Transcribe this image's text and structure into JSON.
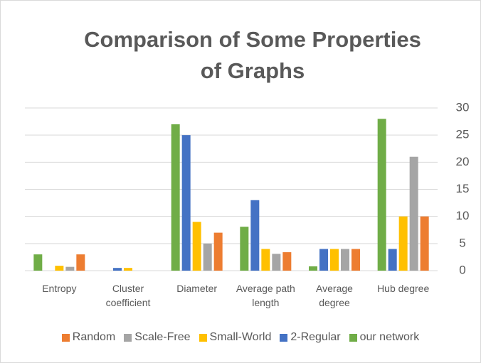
{
  "chart_data": {
    "type": "bar",
    "title": "Comparison of Some Properties of Graphs",
    "categories": [
      "Entropy",
      "Cluster coefficient",
      "Diameter",
      "Average path length",
      "Average degree",
      "Hub degree"
    ],
    "series": [
      {
        "name": "Random",
        "color": "#ed7d31",
        "values": [
          3,
          0,
          7,
          3.4,
          4,
          10
        ]
      },
      {
        "name": "Scale-Free",
        "color": "#a5a5a5",
        "values": [
          0.7,
          0,
          5,
          3.1,
          4,
          21
        ]
      },
      {
        "name": "Small-World",
        "color": "#ffc000",
        "values": [
          0.9,
          0.5,
          9,
          4,
          4,
          10
        ]
      },
      {
        "name": "2-Regular",
        "color": "#4472c4",
        "values": [
          0,
          0.5,
          25,
          13,
          4,
          4
        ]
      },
      {
        "name": "our network",
        "color": "#70ad47",
        "values": [
          3,
          0,
          27,
          8.1,
          0.8,
          28
        ]
      }
    ],
    "ylim": [
      0,
      30
    ],
    "yticks": [
      0,
      5,
      10,
      15,
      20,
      25,
      30
    ],
    "grid": true,
    "legend": "bottom"
  }
}
